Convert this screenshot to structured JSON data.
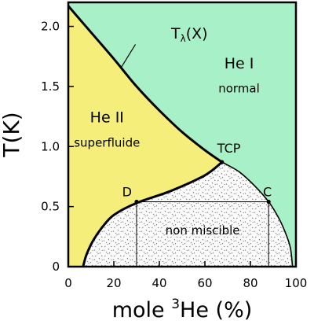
{
  "chart_data": {
    "type": "area",
    "xlabel_prefix": "mole ",
    "xlabel_superscript": "3",
    "xlabel_suffix": "He (%)",
    "ylabel": "T(K)",
    "xlim": [
      0,
      100
    ],
    "ylim": [
      0,
      2.2
    ],
    "x_ticks": [
      "0",
      "20",
      "40",
      "60",
      "80",
      "100"
    ],
    "x_tick_values": [
      0,
      20,
      40,
      60,
      80,
      100
    ],
    "y_ticks": [
      "0",
      "0.5",
      "1.0",
      "1.5",
      "2.0"
    ],
    "y_tick_values": [
      0,
      0.5,
      1.0,
      1.5,
      2.0
    ],
    "colors": {
      "normal": "#a8f0c8",
      "superfluid": "#f5ee7a",
      "non_miscible": "#fafafa",
      "line": "#000000"
    },
    "lambda_line": [
      [
        0,
        2.17
      ],
      [
        10,
        1.95
      ],
      [
        20,
        1.73
      ],
      [
        30,
        1.5
      ],
      [
        40,
        1.3
      ],
      [
        50,
        1.12
      ],
      [
        60,
        0.97
      ],
      [
        67.5,
        0.87
      ]
    ],
    "coexistence_left": [
      [
        6.5,
        0
      ],
      [
        8,
        0.1
      ],
      [
        11,
        0.22
      ],
      [
        15,
        0.33
      ],
      [
        20,
        0.43
      ],
      [
        30,
        0.53
      ],
      [
        45,
        0.63
      ],
      [
        60,
        0.76
      ],
      [
        67.5,
        0.87
      ]
    ],
    "coexistence_right": [
      [
        67.5,
        0.87
      ],
      [
        75,
        0.79
      ],
      [
        82,
        0.67
      ],
      [
        88,
        0.54
      ],
      [
        92,
        0.42
      ],
      [
        95,
        0.3
      ],
      [
        97.5,
        0.16
      ],
      [
        98.5,
        0
      ]
    ],
    "tie_line": {
      "x_start": 30,
      "x_end": 88,
      "y": 0.54
    },
    "points": [
      {
        "name": "TCP",
        "label": "TCP",
        "x": 67.5,
        "y": 0.87
      },
      {
        "name": "D",
        "label": "D",
        "x": 30,
        "y": 0.54
      },
      {
        "name": "C",
        "label": "C",
        "x": 88,
        "y": 0.54
      }
    ],
    "annotations": [
      {
        "name": "lambda-line-label",
        "text": "Tλ(X)",
        "x": 50,
        "y": 1.9
      },
      {
        "name": "he1-label",
        "text": "He I",
        "x": 75,
        "y": 1.65
      },
      {
        "name": "normal-label",
        "text": "normal",
        "x": 75,
        "y": 1.45
      },
      {
        "name": "he2-label",
        "text": "He II",
        "x": 17,
        "y": 1.2
      },
      {
        "name": "superfluide-label",
        "text": "superfluide",
        "x": 17,
        "y": 1.0
      },
      {
        "name": "non-miscible-label",
        "text": "non miscible",
        "x": 59,
        "y": 0.27
      }
    ]
  }
}
